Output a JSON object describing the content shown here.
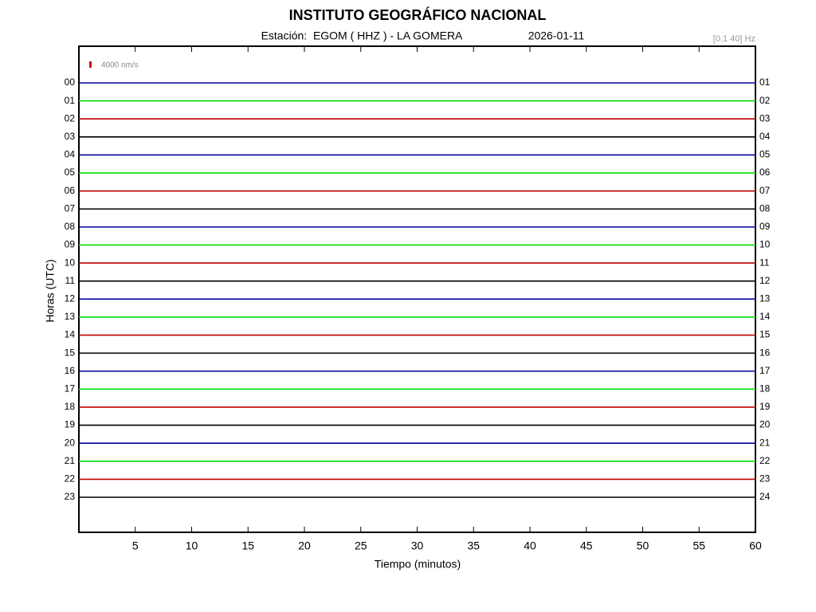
{
  "chart_data": {
    "type": "helicorder",
    "title": "INSTITUTO GEOGRÁFICO NACIONAL",
    "station": "Estación:  EGOM ( HHZ ) - LA GOMERA",
    "date": "2026-01-11",
    "filter": "[0.1 40] Hz",
    "scale_label": "4000 nm/s",
    "ylabel": "Horas (UTC)",
    "xlabel": "Tiempo (minutos)",
    "rows_left": [
      "00",
      "01",
      "02",
      "03",
      "04",
      "05",
      "06",
      "07",
      "08",
      "09",
      "10",
      "11",
      "12",
      "13",
      "14",
      "15",
      "16",
      "17",
      "18",
      "19",
      "20",
      "21",
      "22",
      "23"
    ],
    "rows_right": [
      "01",
      "02",
      "03",
      "04",
      "05",
      "06",
      "07",
      "08",
      "09",
      "10",
      "11",
      "12",
      "13",
      "14",
      "15",
      "16",
      "17",
      "18",
      "19",
      "20",
      "21",
      "22",
      "23",
      "24"
    ],
    "colors": [
      "#000099",
      "#00dd00",
      "#c00000",
      "#000000"
    ],
    "xlim": [
      0,
      60
    ],
    "xticks": [
      5,
      10,
      15,
      20,
      25,
      30,
      35,
      40,
      45,
      50,
      55,
      60
    ]
  }
}
